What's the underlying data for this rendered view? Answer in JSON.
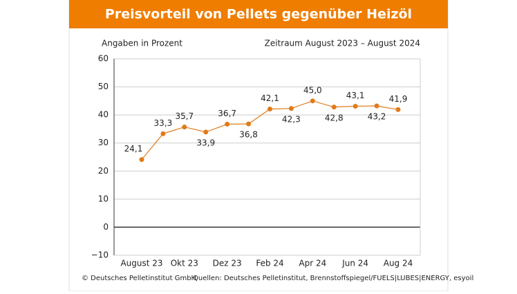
{
  "chart_data": {
    "type": "line",
    "title": "Preisvorteil von Pellets gegenüber Heizöl",
    "y_label": "Angaben in Prozent",
    "period": "Zeitraum August 2023 – August 2024",
    "copyright": "© Deutsches Pelletinstitut GmbH",
    "source": "Quellen: Deutsches Pelletinstitut, Brennstoffspiegel/FUELS|LUBES|ENERGY, esyoil",
    "categories": [
      "August 23",
      null,
      "Okt 23",
      null,
      "Dez 23",
      null,
      "Feb 24",
      null,
      "Apr 24",
      null,
      "Jun 24",
      null,
      "Aug 24"
    ],
    "values": [
      24.1,
      33.3,
      35.7,
      33.9,
      36.7,
      36.8,
      42.1,
      42.3,
      45.0,
      42.8,
      43.1,
      43.2,
      41.9
    ],
    "value_labels": [
      "24,1",
      "33,3",
      "35,7",
      "33,9",
      "36,7",
      "36,8",
      "42,1",
      "42,3",
      "45,0",
      "42,8",
      "43,1",
      "43,2",
      "41,9"
    ],
    "color": "#e07b1a",
    "ylim": [
      -10,
      60
    ],
    "yticks": [
      {
        "value": -10,
        "label": "−10"
      },
      0,
      10,
      20,
      30,
      40,
      50,
      60
    ],
    "grid": true
  }
}
